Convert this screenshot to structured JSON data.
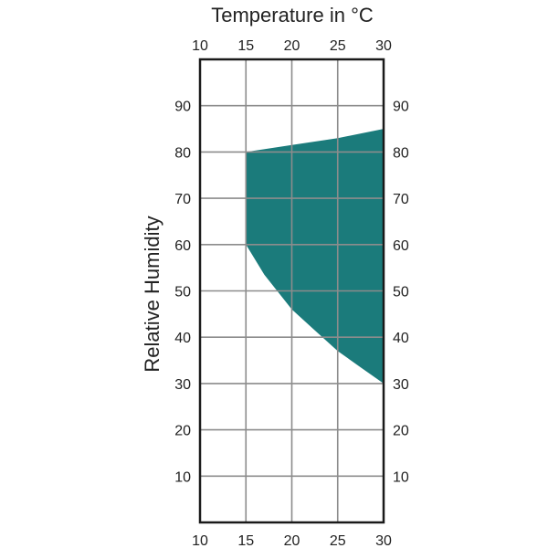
{
  "chart_data": {
    "type": "area",
    "xlabel": "Temperature in °C",
    "ylabel": "Relative Humidity",
    "xlim": [
      10,
      30
    ],
    "ylim": [
      0,
      100
    ],
    "x_ticks": [
      "10",
      "15",
      "20",
      "25",
      "30"
    ],
    "y_ticks": [
      "10",
      "20",
      "30",
      "40",
      "50",
      "60",
      "70",
      "80",
      "90"
    ],
    "grid": true,
    "fill_color": "#1b7b7b",
    "region": {
      "upper": [
        {
          "x": 15,
          "y": 80
        },
        {
          "x": 20,
          "y": 81.5
        },
        {
          "x": 25,
          "y": 83
        },
        {
          "x": 30,
          "y": 85
        }
      ],
      "lower": [
        {
          "x": 15,
          "y": 60
        },
        {
          "x": 17,
          "y": 53.5
        },
        {
          "x": 20,
          "y": 46
        },
        {
          "x": 22.5,
          "y": 41.5
        },
        {
          "x": 25,
          "y": 37
        },
        {
          "x": 27.5,
          "y": 33.5
        },
        {
          "x": 30,
          "y": 30
        }
      ]
    }
  }
}
